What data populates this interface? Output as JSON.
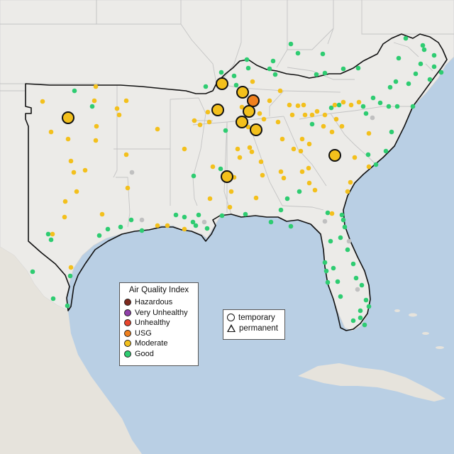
{
  "legend": {
    "title": "Air Quality Index",
    "items": [
      {
        "label": "Hazardous",
        "color": "#7e2a1e"
      },
      {
        "label": "Very Unhealthy",
        "color": "#8f3fa9"
      },
      {
        "label": "Unhealthy",
        "color": "#e8452c"
      },
      {
        "label": "USG",
        "color": "#f0801e"
      },
      {
        "label": "Moderate",
        "color": "#f3c01c"
      },
      {
        "label": "Good",
        "color": "#2ecc71"
      }
    ]
  },
  "shape_legend": {
    "temporary": "temporary",
    "permanent": "permanent"
  },
  "colors": {
    "water": "#b9cfe4",
    "land": "#ecebe8",
    "no_data": "#c0c0c0"
  }
}
